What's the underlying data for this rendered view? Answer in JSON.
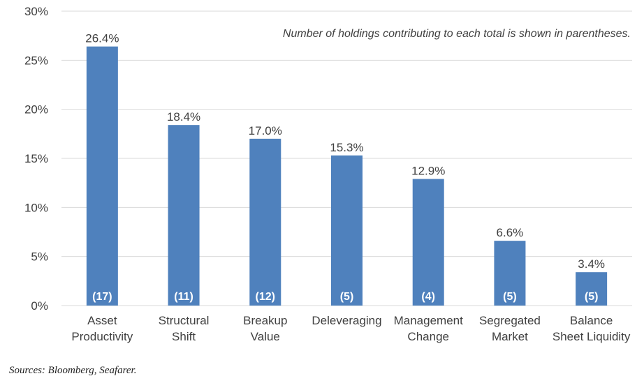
{
  "chart_data": {
    "type": "bar",
    "categories": [
      [
        "Asset",
        "Productivity"
      ],
      [
        "Structural",
        "Shift"
      ],
      [
        "Breakup",
        "Value"
      ],
      [
        "Deleveraging"
      ],
      [
        "Management",
        "Change"
      ],
      [
        "Segregated",
        "Market"
      ],
      [
        "Balance",
        "Sheet Liquidity"
      ]
    ],
    "values": [
      26.4,
      18.4,
      17.0,
      15.3,
      12.9,
      6.6,
      3.4
    ],
    "value_labels": [
      "26.4%",
      "18.4%",
      "17.0%",
      "15.3%",
      "12.9%",
      "6.6%",
      "3.4%"
    ],
    "holdings_counts": [
      "(17)",
      "(11)",
      "(12)",
      "(5)",
      "(4)",
      "(5)",
      "(5)"
    ],
    "yticks": [
      0,
      5,
      10,
      15,
      20,
      25,
      30
    ],
    "ytick_labels": [
      "0%",
      "5%",
      "10%",
      "15%",
      "20%",
      "25%",
      "30%"
    ],
    "ylim": [
      0,
      30
    ],
    "grid": true,
    "annotation": "Number of holdings contributing to each total is shown in parentheses.",
    "bar_color": "#4f81bd",
    "grid_color": "#d9d9d9"
  },
  "source": "Sources: Bloomberg, Seafarer."
}
